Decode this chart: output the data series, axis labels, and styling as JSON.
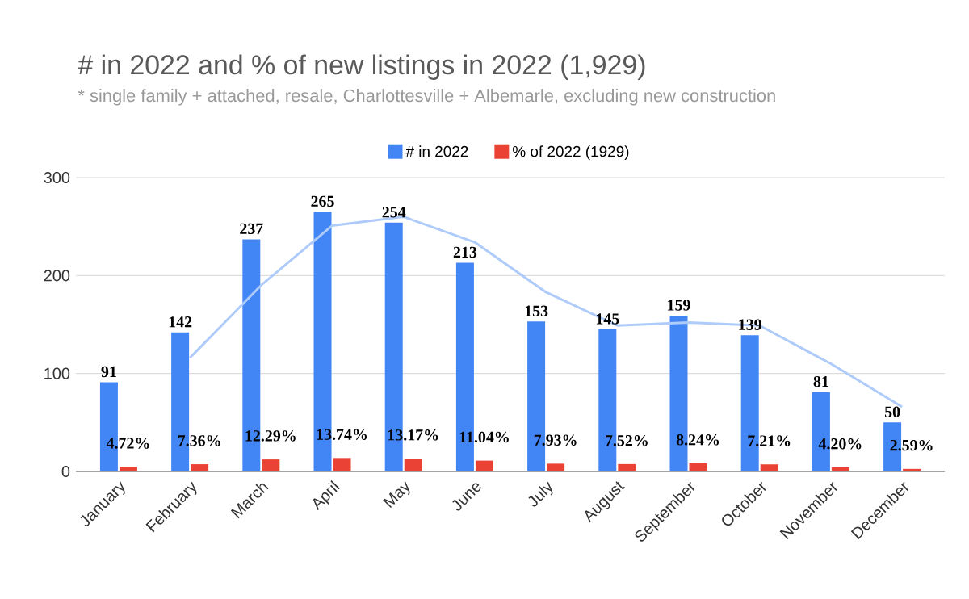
{
  "chart_data": {
    "type": "bar",
    "title": "# in 2022 and % of new listings in 2022 (1,929)",
    "subtitle": "* single family + attached, resale, Charlottesville + Albemarle, excluding new construction",
    "categories": [
      "January",
      "February",
      "March",
      "April",
      "May",
      "June",
      "July",
      "August",
      "September",
      "October",
      "November",
      "December"
    ],
    "series": [
      {
        "name": "# in 2022",
        "color": "#4285f4",
        "values": [
          91,
          142,
          237,
          265,
          254,
          213,
          153,
          145,
          159,
          139,
          81,
          50
        ],
        "value_labels": [
          "91",
          "142",
          "237",
          "265",
          "254",
          "213",
          "153",
          "145",
          "159",
          "139",
          "81",
          "50"
        ]
      },
      {
        "name": "% of 2022 (1929)",
        "color": "#ea4335",
        "values": [
          4.72,
          7.36,
          12.29,
          13.74,
          13.17,
          11.04,
          7.93,
          7.52,
          8.24,
          7.21,
          4.2,
          2.59
        ],
        "value_labels": [
          "4.72%",
          "7.36%",
          "12.29%",
          "13.74%",
          "13.17%",
          "11.04%",
          "7.93%",
          "7.52%",
          "8.24%",
          "7.21%",
          "4.20%",
          "2.59%"
        ]
      },
      {
        "type": "line",
        "color": "#aecbfa",
        "values": [
          null,
          116,
          190,
          251,
          260,
          234,
          183,
          149,
          152,
          149,
          110,
          66
        ]
      }
    ],
    "ylim": [
      0,
      300
    ],
    "yticks": [
      0,
      100,
      200,
      300
    ],
    "grid": "y",
    "legend": "top"
  }
}
